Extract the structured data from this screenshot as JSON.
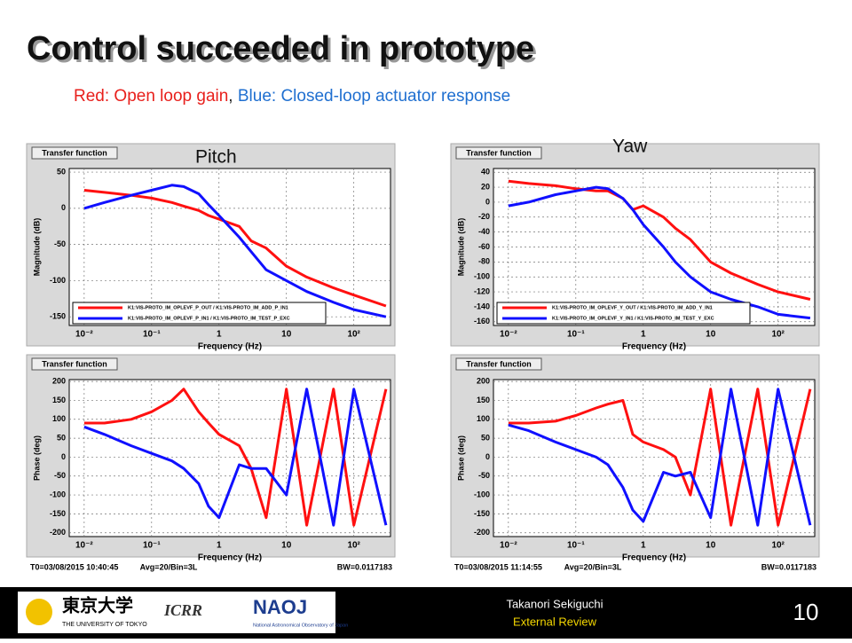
{
  "header": {
    "title": "Control succeeded in prototype",
    "subtitle": [
      {
        "text": "Red: Open loop gain",
        "color": "#e8201c"
      },
      {
        "text": ", ",
        "color": "#222222"
      },
      {
        "text": "Blue: Closed-loop actuator response",
        "color": "#1f6fd0"
      }
    ]
  },
  "labels": [
    "Pitch",
    "Yaw"
  ],
  "panels": [
    {
      "tab": "Transfer function",
      "ylabel": "Magnitude (dB)",
      "xlabel": "Frequency (Hz)",
      "xlim": [
        0.006,
        350
      ],
      "ylim": [
        -162,
        55
      ],
      "xticks": [
        {
          "value": 0.01,
          "label": "10⁻²"
        },
        {
          "value": 0.1,
          "label": "10⁻¹"
        },
        1,
        10,
        {
          "value": 100,
          "label": "10²"
        }
      ],
      "yticks": [
        -150,
        -100,
        -50,
        0,
        50
      ],
      "x": [
        0.01,
        0.02,
        0.05,
        0.1,
        0.2,
        0.3,
        0.5,
        0.7,
        1,
        2,
        3,
        5,
        10,
        20,
        50,
        100,
        300
      ],
      "legend": [
        "K1:VIS-PROTO_IM_OPLEVF_P_OUT / K1:VIS-PROTO_IM_ADD_P_IN1",
        "K1:VIS-PROTO_IM_OPLEVF_P_IN1 / K1:VIS-PROTO_IM_TEST_P_EXC"
      ],
      "series": [
        {
          "color": "#ff1010",
          "values": [
            25,
            22,
            18,
            14,
            8,
            3,
            -3,
            -10,
            -15,
            -25,
            -45,
            -55,
            -80,
            -95,
            -110,
            -120,
            -135
          ]
        },
        {
          "color": "#1010ff",
          "values": [
            0,
            8,
            18,
            25,
            32,
            30,
            20,
            5,
            -10,
            -40,
            -60,
            -85,
            -100,
            -115,
            -130,
            -140,
            -150
          ]
        }
      ]
    },
    {
      "tab": "Transfer function",
      "ylabel": "Phase (deg)",
      "xlabel": "Frequency (Hz)",
      "xlim": [
        0.006,
        350
      ],
      "ylim": [
        -210,
        205
      ],
      "xticks": [
        {
          "value": 0.01,
          "label": "10⁻²"
        },
        {
          "value": 0.1,
          "label": "10⁻¹"
        },
        1,
        10,
        {
          "value": 100,
          "label": "10²"
        }
      ],
      "yticks": [
        -200,
        -150,
        -100,
        -50,
        0,
        50,
        100,
        150,
        200
      ],
      "x": [
        0.01,
        0.02,
        0.05,
        0.1,
        0.2,
        0.3,
        0.5,
        0.7,
        1,
        2,
        3,
        5,
        10,
        20,
        50,
        100,
        300
      ],
      "series": [
        {
          "color": "#ff1010",
          "values": [
            90,
            90,
            100,
            120,
            150,
            180,
            120,
            90,
            60,
            30,
            -30,
            -160,
            180,
            -180,
            180,
            -180,
            180
          ]
        },
        {
          "color": "#1010ff",
          "values": [
            80,
            60,
            30,
            10,
            -10,
            -30,
            -70,
            -130,
            -160,
            -20,
            -30,
            -30,
            -100,
            180,
            -180,
            180,
            -180
          ]
        }
      ],
      "info": [
        "T0=03/08/2015 10:40:45",
        "Avg=20/Bin=3L",
        "BW=0.0117183"
      ]
    },
    {
      "tab": "Transfer function",
      "ylabel": "Magnitude (dB)",
      "xlabel": "Frequency (Hz)",
      "xlim": [
        0.006,
        350
      ],
      "ylim": [
        -165,
        45
      ],
      "xticks": [
        {
          "value": 0.01,
          "label": "10⁻²"
        },
        {
          "value": 0.1,
          "label": "10⁻¹"
        },
        1,
        10,
        {
          "value": 100,
          "label": "10²"
        }
      ],
      "yticks": [
        -160,
        -140,
        -120,
        -100,
        -80,
        -60,
        -40,
        -20,
        0,
        20,
        40
      ],
      "x": [
        0.01,
        0.02,
        0.05,
        0.1,
        0.2,
        0.3,
        0.5,
        0.7,
        1,
        2,
        3,
        5,
        10,
        20,
        50,
        100,
        300
      ],
      "legend": [
        "K1:VIS-PROTO_IM_OPLEVF_Y_OUT / K1:VIS-PROTO_IM_ADD_Y_IN1",
        "K1:VIS-PROTO_IM_OPLEVF_Y_IN1 / K1:VIS-PROTO_IM_TEST_Y_EXC"
      ],
      "series": [
        {
          "color": "#ff1010",
          "values": [
            28,
            25,
            22,
            18,
            15,
            15,
            5,
            -10,
            -5,
            -20,
            -35,
            -50,
            -80,
            -95,
            -110,
            -120,
            -130
          ]
        },
        {
          "color": "#1010ff",
          "values": [
            -5,
            0,
            10,
            15,
            20,
            18,
            5,
            -10,
            -30,
            -60,
            -80,
            -100,
            -120,
            -130,
            -140,
            -150,
            -155
          ]
        }
      ]
    },
    {
      "tab": "Transfer function",
      "ylabel": "Phase (deg)",
      "xlabel": "Frequency (Hz)",
      "xlim": [
        0.006,
        350
      ],
      "ylim": [
        -210,
        205
      ],
      "xticks": [
        {
          "value": 0.01,
          "label": "10⁻²"
        },
        {
          "value": 0.1,
          "label": "10⁻¹"
        },
        1,
        10,
        {
          "value": 100,
          "label": "10²"
        }
      ],
      "yticks": [
        -200,
        -150,
        -100,
        -50,
        0,
        50,
        100,
        150,
        200
      ],
      "x": [
        0.01,
        0.02,
        0.05,
        0.1,
        0.2,
        0.3,
        0.5,
        0.7,
        1,
        2,
        3,
        5,
        10,
        20,
        50,
        100,
        300
      ],
      "series": [
        {
          "color": "#ff1010",
          "values": [
            90,
            90,
            95,
            110,
            130,
            140,
            150,
            60,
            40,
            20,
            0,
            -100,
            180,
            -180,
            180,
            -180,
            180
          ]
        },
        {
          "color": "#1010ff",
          "values": [
            85,
            70,
            40,
            20,
            0,
            -20,
            -80,
            -140,
            -170,
            -40,
            -50,
            -40,
            -160,
            180,
            -180,
            180,
            -180
          ]
        }
      ],
      "info": [
        "T0=03/08/2015 11:14:55",
        "Avg=20/Bin=3L",
        "BW=0.0117183"
      ]
    }
  ],
  "footer": {
    "logos": [
      "東京大学",
      "THE UNIVERSITY OF TOKYO",
      "ICRR",
      "NAOJ",
      "National Astronomical Observatory of Japan"
    ],
    "author": "Takanori Sekiguchi",
    "event": "External Review",
    "page": "10"
  }
}
